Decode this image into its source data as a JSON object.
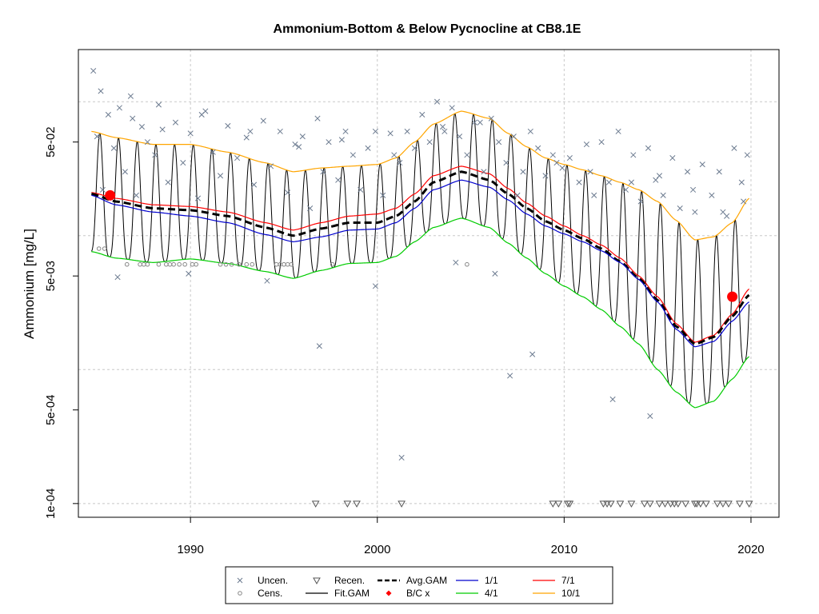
{
  "chart_data": {
    "type": "line",
    "title": "Ammonium-Bottom & Below Pycnocline at CB8.1E",
    "xlabel": "",
    "ylabel": "Ammonium [mg/L]",
    "xlim": [
      1984.0,
      2021.5
    ],
    "ylim": [
      7.9e-05,
      0.245
    ],
    "yscale": "log",
    "grid": true,
    "x_ticks": [
      {
        "value": 1990,
        "label": "1990"
      },
      {
        "value": 2000,
        "label": "2000"
      },
      {
        "value": 2010,
        "label": "2010"
      },
      {
        "value": 2020,
        "label": "2020"
      }
    ],
    "y_ticks": [
      {
        "value": 0.0001,
        "label": "1e-04"
      },
      {
        "value": 0.0005,
        "label": "5e-04"
      },
      {
        "value": 0.005,
        "label": "5e-03"
      },
      {
        "value": 0.05,
        "label": "5e-02"
      }
    ],
    "y_grid": [
      0.0001,
      0.001,
      0.01,
      0.1
    ],
    "series_lines": [
      {
        "key": "p10_1",
        "legend": "10/1",
        "color": "#FFA500",
        "dash": "",
        "x": [
          1984.7,
          1986,
          1988,
          1990,
          1992,
          1994,
          1995.5,
          1997,
          1998.5,
          2000,
          2001,
          2002,
          2003,
          2004.5,
          2006,
          2007,
          2008,
          2009,
          2010,
          2011,
          2012,
          2013,
          2014,
          2015,
          2016,
          2017,
          2018,
          2019,
          2019.9
        ],
        "y": [
          0.06,
          0.054,
          0.048,
          0.048,
          0.042,
          0.035,
          0.03,
          0.032,
          0.033,
          0.034,
          0.038,
          0.05,
          0.068,
          0.085,
          0.075,
          0.058,
          0.046,
          0.038,
          0.034,
          0.031,
          0.028,
          0.025,
          0.022,
          0.018,
          0.013,
          0.0093,
          0.0098,
          0.0125,
          0.019
        ]
      },
      {
        "key": "p7_1",
        "legend": "7/1",
        "color": "#FF0000",
        "dash": "",
        "x": [
          1984.7,
          1986,
          1988,
          1990,
          1992,
          1994,
          1995.5,
          1997,
          1998.5,
          2000,
          2001,
          2002,
          2003,
          2004.5,
          2006,
          2007,
          2008,
          2009,
          2010,
          2011,
          2012,
          2013,
          2014,
          2015,
          2016,
          2017,
          2018,
          2019,
          2019.9
        ],
        "y": [
          0.021,
          0.019,
          0.017,
          0.0165,
          0.015,
          0.0125,
          0.011,
          0.0125,
          0.014,
          0.0145,
          0.016,
          0.0205,
          0.028,
          0.033,
          0.029,
          0.0225,
          0.0175,
          0.014,
          0.0118,
          0.01,
          0.0085,
          0.0068,
          0.005,
          0.0035,
          0.0022,
          0.0016,
          0.0018,
          0.0026,
          0.004
        ]
      },
      {
        "key": "avg_gam",
        "legend": "Avg.GAM",
        "color": "#000000",
        "dash": "9,5",
        "width": 3,
        "x": [
          1984.7,
          1986,
          1988,
          1990,
          1992,
          1994,
          1995.5,
          1997,
          1998.5,
          2000,
          2001,
          2002,
          2003,
          2004.5,
          2006,
          2007,
          2008,
          2009,
          2010,
          2011,
          2012,
          2013,
          2014,
          2015,
          2016,
          2017,
          2018,
          2019,
          2019.9
        ],
        "y": [
          0.0205,
          0.018,
          0.016,
          0.0155,
          0.014,
          0.0115,
          0.01,
          0.0113,
          0.0125,
          0.0125,
          0.014,
          0.018,
          0.025,
          0.03,
          0.026,
          0.0205,
          0.016,
          0.0128,
          0.011,
          0.0095,
          0.008,
          0.0064,
          0.0048,
          0.0033,
          0.0021,
          0.00155,
          0.00175,
          0.0025,
          0.0036
        ]
      },
      {
        "key": "p1_1",
        "legend": "1/1",
        "color": "#0000CD",
        "dash": "",
        "x": [
          1984.7,
          1986,
          1988,
          1990,
          1992,
          1994,
          1995.5,
          1997,
          1998.5,
          2000,
          2001,
          2002,
          2003,
          2004.5,
          2006,
          2007,
          2008,
          2009,
          2010,
          2011,
          2012,
          2013,
          2014,
          2015,
          2016,
          2017,
          2018,
          2019,
          2019.9
        ],
        "y": [
          0.02,
          0.017,
          0.015,
          0.014,
          0.0125,
          0.0102,
          0.009,
          0.0098,
          0.011,
          0.0112,
          0.0125,
          0.016,
          0.022,
          0.026,
          0.023,
          0.0185,
          0.0145,
          0.0118,
          0.0103,
          0.009,
          0.0077,
          0.0063,
          0.0047,
          0.0032,
          0.002,
          0.00148,
          0.00162,
          0.0023,
          0.0032
        ]
      },
      {
        "key": "p4_1",
        "legend": "4/1",
        "color": "#00CC00",
        "dash": "",
        "x": [
          1984.7,
          1986,
          1988,
          1990,
          1992,
          1994,
          1995.5,
          1997,
          1998.5,
          2000,
          2001,
          2002,
          2003,
          2004.5,
          2006,
          2007,
          2008,
          2009,
          2010,
          2011,
          2012,
          2013,
          2014,
          2015,
          2016,
          2017,
          2018,
          2019,
          2019.9
        ],
        "y": [
          0.0076,
          0.0068,
          0.0063,
          0.0067,
          0.0062,
          0.0054,
          0.0048,
          0.0055,
          0.0062,
          0.0063,
          0.007,
          0.009,
          0.0115,
          0.0135,
          0.0115,
          0.0088,
          0.0068,
          0.0052,
          0.0042,
          0.0035,
          0.0028,
          0.0021,
          0.00155,
          0.001,
          0.00068,
          0.00052,
          0.00058,
          0.00085,
          0.00125
        ]
      }
    ],
    "fit_gam": {
      "legend": "Fit.GAM",
      "color": "#000000",
      "x_start": 1984.7,
      "x_end": 2019.9,
      "peak_month_frac": 0.15,
      "upper_series": "p10_1",
      "lower_series": "p4_1"
    },
    "points_uncensored": {
      "legend": "Uncen.",
      "color": "#6B7A8F",
      "x": [
        1984.8,
        1985.0,
        1985.3,
        1985.6,
        1985.9,
        1986.2,
        1986.5,
        1986.9,
        1987.1,
        1987.4,
        1987.7,
        1988.1,
        1988.5,
        1988.8,
        1989.2,
        1989.6,
        1990.0,
        1990.4,
        1990.8,
        1991.2,
        1991.6,
        1992.0,
        1992.5,
        1993.0,
        1993.4,
        1993.9,
        1994.3,
        1994.8,
        1995.2,
        1995.6,
        1996.0,
        1996.4,
        1996.8,
        1997.1,
        1997.4,
        1997.9,
        1998.3,
        1998.7,
        1999.1,
        1999.5,
        1999.9,
        2000.3,
        2000.7,
        2001.2,
        2001.6,
        2002.0,
        2002.4,
        2002.8,
        2003.2,
        2003.6,
        2004.0,
        2004.4,
        2004.8,
        2005.2,
        2005.7,
        2006.1,
        2006.5,
        2006.9,
        2007.3,
        2007.8,
        2008.2,
        2008.6,
        2009.0,
        2009.4,
        2009.9,
        2010.3,
        2010.8,
        2011.2,
        2011.6,
        2012.0,
        2012.4,
        2012.9,
        2013.3,
        2013.7,
        2014.1,
        2014.5,
        2014.9,
        2015.3,
        2015.8,
        2016.2,
        2016.6,
        2017.0,
        2017.4,
        2017.9,
        2018.3,
        2018.7,
        2019.1,
        2019.5,
        2019.8,
        1985.2,
        1986.8,
        1988.3,
        1990.6,
        1993.2,
        1995.8,
        1998.1,
        2000.9,
        2003.5,
        2005.5,
        2007.5,
        2009.6,
        2011.4,
        2013.6,
        2015.1,
        2016.9,
        2018.5,
        2019.6,
        1996.9,
        2001.3,
        2007.1,
        2008.3,
        2012.6,
        2014.6,
        1999.9,
        2006.3,
        2004.2,
        1986.1,
        1989.9,
        1994.1
      ],
      "y": [
        0.17,
        0.055,
        0.022,
        0.08,
        0.045,
        0.09,
        0.03,
        0.075,
        0.02,
        0.065,
        0.05,
        0.04,
        0.062,
        0.025,
        0.07,
        0.035,
        0.058,
        0.019,
        0.085,
        0.042,
        0.028,
        0.066,
        0.038,
        0.054,
        0.024,
        0.072,
        0.033,
        0.06,
        0.021,
        0.048,
        0.055,
        0.016,
        0.075,
        0.03,
        0.05,
        0.026,
        0.06,
        0.04,
        0.022,
        0.045,
        0.06,
        0.02,
        0.058,
        0.035,
        0.06,
        0.045,
        0.08,
        0.05,
        0.1,
        0.06,
        0.09,
        0.055,
        0.04,
        0.07,
        0.03,
        0.075,
        0.05,
        0.035,
        0.055,
        0.03,
        0.06,
        0.045,
        0.028,
        0.04,
        0.032,
        0.038,
        0.025,
        0.048,
        0.02,
        0.05,
        0.025,
        0.06,
        0.022,
        0.04,
        0.018,
        0.045,
        0.026,
        0.02,
        0.038,
        0.016,
        0.03,
        0.015,
        0.034,
        0.02,
        0.03,
        0.014,
        0.045,
        0.025,
        0.04,
        0.12,
        0.11,
        0.095,
        0.08,
        0.06,
        0.046,
        0.052,
        0.04,
        0.065,
        0.07,
        0.02,
        0.035,
        0.03,
        0.025,
        0.028,
        0.022,
        0.015,
        0.018,
        0.0015,
        0.00022,
        0.0009,
        0.0013,
        0.0006,
        0.00045,
        0.0042,
        0.0052,
        0.0063,
        0.0049,
        0.0052,
        0.0046
      ]
    },
    "points_censored": {
      "legend": "Cens.",
      "color": "#888888",
      "x": [
        1985.1,
        1985.4,
        1986.6,
        1987.3,
        1987.5,
        1987.7,
        1988.3,
        1988.7,
        1988.9,
        1989.1,
        1989.4,
        1989.7,
        1990.1,
        1990.3,
        1991.6,
        1991.9,
        1992.2,
        1992.6,
        1993.0,
        1993.3,
        1994.6,
        1994.8,
        1995.0,
        1995.2,
        1995.4,
        1997.6,
        2004.8
      ],
      "y": [
        0.008,
        0.008,
        0.0061,
        0.0061,
        0.0061,
        0.0061,
        0.0061,
        0.0061,
        0.0061,
        0.0061,
        0.0061,
        0.0061,
        0.0061,
        0.0061,
        0.0061,
        0.0061,
        0.0061,
        0.0061,
        0.0061,
        0.0061,
        0.0061,
        0.0061,
        0.0061,
        0.0061,
        0.0061,
        0.0061,
        0.0061
      ]
    },
    "points_recensored": {
      "legend": "Recen.",
      "color": "#555555",
      "y_value": 0.0001,
      "x": [
        1996.7,
        1998.4,
        1998.9,
        2001.3,
        2009.4,
        2009.7,
        2010.2,
        2010.3,
        2012.3,
        2012.5,
        2013.0,
        2013.6,
        2014.3,
        2014.6,
        2015.1,
        2015.4,
        2015.7,
        2016.1,
        2016.5,
        2017.0,
        2017.3,
        2017.6,
        2018.2,
        2018.5,
        2018.8,
        2019.4,
        2019.9,
        2012.1,
        2015.9,
        2017.1
      ]
    },
    "points_bc": {
      "legend": "B/C x",
      "color": "#FF0000",
      "x": [
        1985.7,
        2019.0
      ],
      "y": [
        0.02,
        0.0035
      ]
    },
    "legend": {
      "position": "bottom-center",
      "entries": [
        {
          "symbol": "x",
          "label": "Uncen.",
          "color": "#6B7A8F"
        },
        {
          "symbol": "triangle-down",
          "label": "Recen.",
          "color": "#555555"
        },
        {
          "symbol": "dashed-line",
          "label": "Avg.GAM",
          "color": "#000000"
        },
        {
          "symbol": "line",
          "label": "1/1",
          "color": "#0000CD"
        },
        {
          "symbol": "line",
          "label": "7/1",
          "color": "#FF0000"
        },
        {
          "symbol": "circle",
          "label": "Cens.",
          "color": "#888888"
        },
        {
          "symbol": "line",
          "label": "Fit.GAM",
          "color": "#000000"
        },
        {
          "symbol": "diamond",
          "label": "B/C x",
          "color": "#FF0000"
        },
        {
          "symbol": "line",
          "label": "4/1",
          "color": "#00CC00"
        },
        {
          "symbol": "line",
          "label": "10/1",
          "color": "#FFA500"
        }
      ]
    }
  }
}
